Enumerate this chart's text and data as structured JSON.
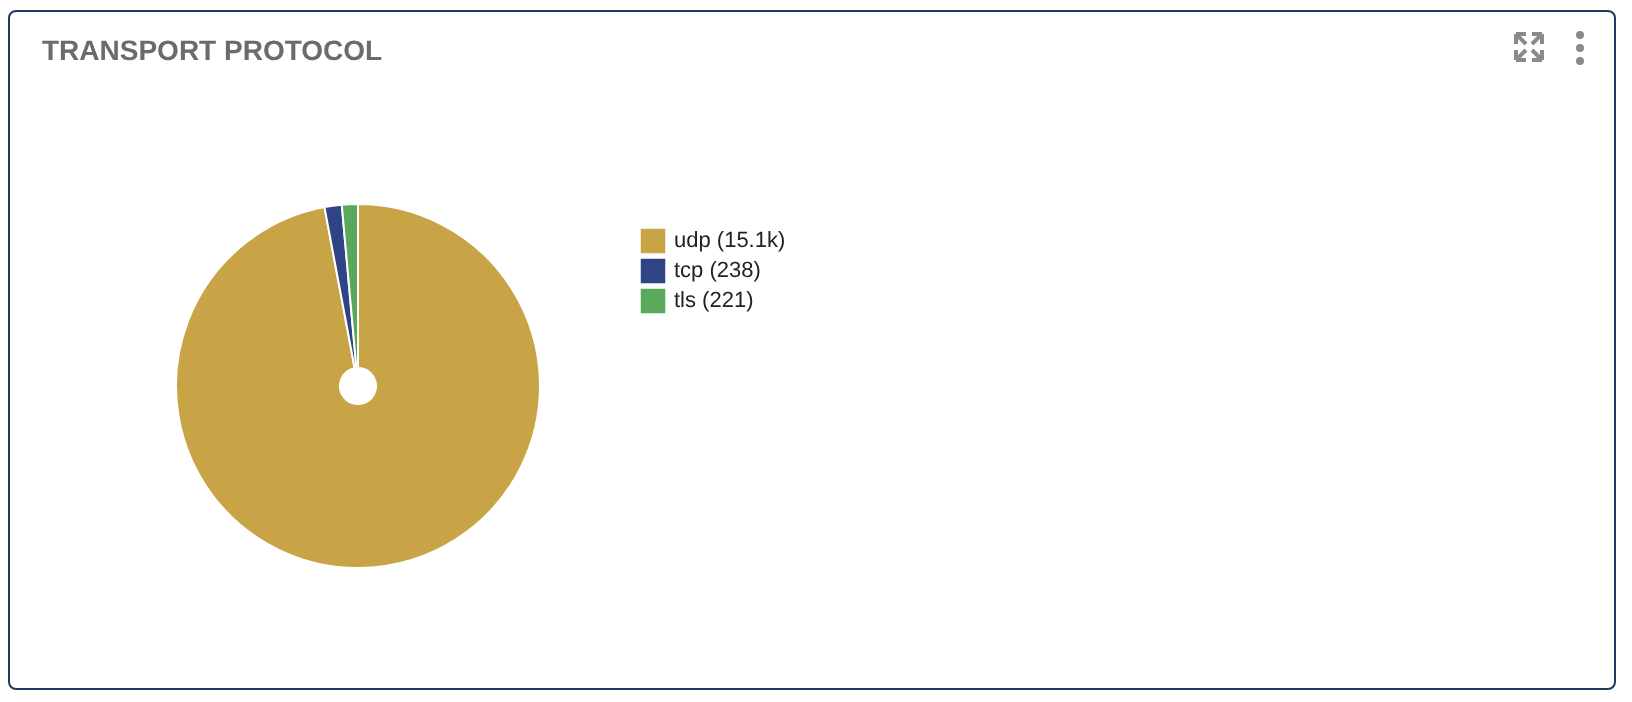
{
  "chart_data": {
    "type": "pie",
    "title": "TRANSPORT PROTOCOL",
    "categories": [
      "udp (15.1k)",
      "tcp (238)",
      "tls (221)"
    ],
    "values": [
      15100,
      238,
      221
    ],
    "colors": [
      "#c9a447",
      "#2e4484",
      "#5aa85c"
    ],
    "legend": "right"
  }
}
